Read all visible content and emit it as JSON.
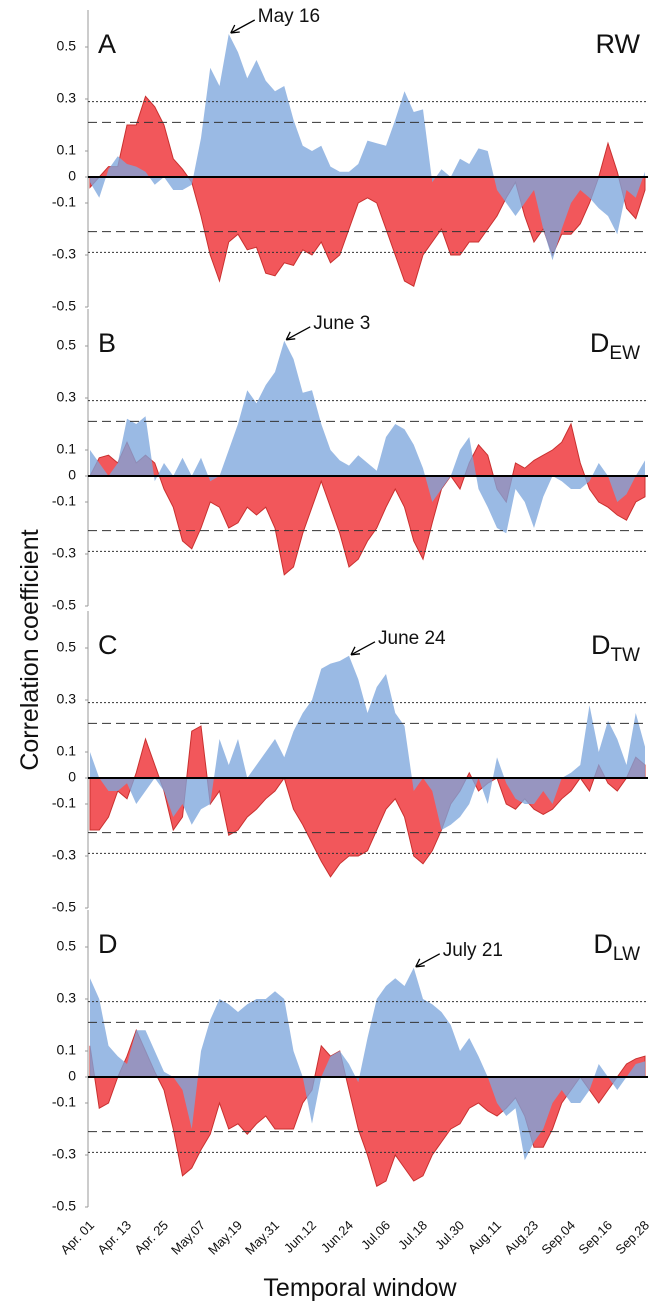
{
  "chart_data": {
    "type": "area",
    "y_label": "Correlation coefficient",
    "x_label": "Temporal window",
    "categories": [
      "Apr. 01",
      null,
      null,
      null,
      "Apr. 13",
      null,
      null,
      null,
      "Apr. 25",
      null,
      null,
      null,
      "May.07",
      null,
      null,
      null,
      "May.19",
      null,
      null,
      null,
      "May.31",
      null,
      null,
      null,
      "Jun.12",
      null,
      null,
      null,
      "Jun.24",
      null,
      null,
      null,
      "Jul.06",
      null,
      null,
      null,
      "Jul.18",
      null,
      null,
      null,
      "Jul.30",
      null,
      null,
      null,
      "Aug.11",
      null,
      null,
      null,
      "Aug.23",
      null,
      null,
      null,
      "Sep.04",
      null,
      null,
      null,
      "Sep.16",
      null,
      null,
      null,
      "Sep.28"
    ],
    "ylim": [
      -0.5,
      0.65
    ],
    "yticks": [
      -0.5,
      -0.3,
      -0.1,
      0,
      0.1,
      0.3,
      0.5
    ],
    "hlines": [
      {
        "value": 0.29,
        "style": "dotted"
      },
      {
        "value": 0.21,
        "style": "dashed"
      },
      {
        "value": -0.21,
        "style": "dashed"
      },
      {
        "value": -0.29,
        "style": "dotted"
      }
    ],
    "panels": [
      {
        "letter": "A",
        "label": {
          "text": "RW"
        },
        "annotation": "May 16",
        "series": [
          {
            "color": "#f2575b",
            "values": [
              -0.04,
              0.0,
              0.04,
              0.04,
              0.2,
              0.2,
              0.31,
              0.27,
              0.2,
              0.07,
              0.03,
              -0.02,
              -0.15,
              -0.3,
              -0.4,
              -0.25,
              -0.22,
              -0.28,
              -0.27,
              -0.37,
              -0.38,
              -0.33,
              -0.34,
              -0.28,
              -0.3,
              -0.25,
              -0.33,
              -0.3,
              -0.2,
              -0.1,
              -0.08,
              -0.1,
              -0.2,
              -0.3,
              -0.4,
              -0.42,
              -0.3,
              -0.25,
              -0.2,
              -0.3,
              -0.3,
              -0.25,
              -0.25,
              -0.2,
              -0.15,
              -0.08,
              -0.02,
              -0.15,
              -0.25,
              -0.2,
              -0.3,
              -0.22,
              -0.22,
              -0.18,
              -0.1,
              0.0,
              0.13,
              0.02,
              -0.12,
              -0.16,
              -0.05
            ]
          },
          {
            "color": "#7ea6dc",
            "values": [
              -0.02,
              -0.08,
              0.03,
              0.08,
              0.05,
              0.04,
              0.02,
              -0.03,
              0.0,
              -0.05,
              -0.05,
              -0.03,
              0.15,
              0.42,
              0.35,
              0.55,
              0.48,
              0.38,
              0.45,
              0.37,
              0.33,
              0.35,
              0.22,
              0.12,
              0.1,
              0.12,
              0.04,
              0.02,
              0.02,
              0.05,
              0.14,
              0.13,
              0.12,
              0.22,
              0.33,
              0.25,
              0.26,
              -0.02,
              0.03,
              0.0,
              0.07,
              0.05,
              0.11,
              0.1,
              -0.05,
              -0.1,
              -0.15,
              -0.1,
              -0.05,
              -0.2,
              -0.32,
              -0.2,
              -0.1,
              -0.05,
              -0.08,
              -0.12,
              -0.15,
              -0.22,
              -0.05,
              -0.08,
              0.02
            ]
          }
        ]
      },
      {
        "letter": "B",
        "label": {
          "text": "D",
          "sub": "EW"
        },
        "annotation": "June 3",
        "series": [
          {
            "color": "#f2575b",
            "values": [
              0.0,
              0.07,
              0.08,
              0.05,
              0.13,
              0.05,
              0.08,
              0.05,
              -0.05,
              -0.12,
              -0.25,
              -0.28,
              -0.2,
              -0.1,
              -0.12,
              -0.2,
              -0.18,
              -0.12,
              -0.15,
              -0.12,
              -0.2,
              -0.38,
              -0.35,
              -0.22,
              -0.12,
              -0.02,
              -0.12,
              -0.22,
              -0.35,
              -0.32,
              -0.25,
              -0.2,
              -0.12,
              -0.05,
              -0.12,
              -0.25,
              -0.32,
              -0.18,
              -0.05,
              0.0,
              -0.05,
              0.05,
              0.12,
              0.08,
              -0.05,
              -0.1,
              0.05,
              0.03,
              0.06,
              0.08,
              0.1,
              0.13,
              0.2,
              0.05,
              -0.05,
              -0.1,
              -0.12,
              -0.15,
              -0.17,
              -0.1,
              -0.08
            ]
          },
          {
            "color": "#7ea6dc",
            "values": [
              0.1,
              0.05,
              0.0,
              0.05,
              0.22,
              0.2,
              0.23,
              -0.02,
              0.05,
              0.0,
              0.07,
              0.0,
              0.07,
              -0.02,
              0.0,
              0.1,
              0.2,
              0.33,
              0.28,
              0.35,
              0.4,
              0.52,
              0.45,
              0.32,
              0.33,
              0.2,
              0.1,
              0.06,
              0.04,
              0.08,
              0.05,
              0.02,
              0.15,
              0.2,
              0.18,
              0.12,
              0.03,
              -0.1,
              -0.05,
              0.0,
              0.1,
              0.15,
              -0.05,
              -0.12,
              -0.2,
              -0.22,
              -0.05,
              -0.1,
              -0.2,
              -0.08,
              0.0,
              -0.02,
              -0.05,
              -0.05,
              -0.02,
              0.05,
              0.0,
              -0.1,
              -0.07,
              0.0,
              0.06
            ]
          }
        ]
      },
      {
        "letter": "C",
        "label": {
          "text": "D",
          "sub": "TW"
        },
        "annotation": "June 24",
        "series": [
          {
            "color": "#f2575b",
            "values": [
              -0.2,
              -0.2,
              -0.15,
              -0.05,
              -0.08,
              0.02,
              0.15,
              0.05,
              -0.05,
              -0.2,
              -0.15,
              0.18,
              0.2,
              -0.1,
              -0.05,
              -0.22,
              -0.2,
              -0.15,
              -0.12,
              -0.08,
              -0.05,
              0.0,
              -0.12,
              -0.18,
              -0.25,
              -0.32,
              -0.38,
              -0.33,
              -0.3,
              -0.3,
              -0.28,
              -0.2,
              -0.12,
              -0.08,
              -0.15,
              -0.3,
              -0.33,
              -0.28,
              -0.2,
              -0.1,
              -0.05,
              0.02,
              -0.05,
              -0.02,
              0.0,
              -0.1,
              -0.12,
              -0.08,
              -0.12,
              -0.14,
              -0.12,
              -0.08,
              -0.05,
              0.0,
              -0.05,
              0.05,
              -0.02,
              -0.05,
              0.0,
              0.08,
              0.05
            ]
          },
          {
            "color": "#7ea6dc",
            "values": [
              0.1,
              0.0,
              -0.05,
              -0.05,
              -0.02,
              -0.1,
              -0.05,
              0.0,
              -0.05,
              -0.15,
              -0.1,
              -0.18,
              -0.12,
              -0.1,
              0.15,
              0.05,
              0.15,
              0.0,
              0.05,
              0.1,
              0.15,
              0.08,
              0.18,
              0.25,
              0.3,
              0.42,
              0.44,
              0.45,
              0.47,
              0.38,
              0.25,
              0.35,
              0.4,
              0.25,
              0.2,
              -0.05,
              0.0,
              -0.05,
              -0.2,
              -0.18,
              -0.15,
              -0.1,
              0.0,
              -0.1,
              0.08,
              -0.02,
              -0.08,
              -0.1,
              -0.1,
              -0.05,
              -0.1,
              0.0,
              0.02,
              0.05,
              0.28,
              0.1,
              0.22,
              0.15,
              0.05,
              0.25,
              0.12
            ]
          }
        ]
      },
      {
        "letter": "D",
        "label": {
          "text": "D",
          "sub": "LW"
        },
        "annotation": "July 21",
        "series": [
          {
            "color": "#f2575b",
            "values": [
              0.12,
              -0.12,
              -0.1,
              0.0,
              0.08,
              0.18,
              0.1,
              0.02,
              -0.05,
              -0.2,
              -0.38,
              -0.35,
              -0.28,
              -0.22,
              -0.1,
              -0.2,
              -0.18,
              -0.22,
              -0.18,
              -0.15,
              -0.2,
              -0.2,
              -0.2,
              -0.1,
              -0.05,
              0.12,
              0.08,
              0.1,
              -0.05,
              -0.2,
              -0.3,
              -0.42,
              -0.4,
              -0.3,
              -0.35,
              -0.4,
              -0.38,
              -0.3,
              -0.25,
              -0.2,
              -0.18,
              -0.12,
              -0.1,
              -0.13,
              -0.15,
              -0.12,
              -0.08,
              -0.15,
              -0.27,
              -0.27,
              -0.2,
              -0.1,
              -0.05,
              0.0,
              -0.05,
              -0.1,
              -0.05,
              0.0,
              0.05,
              0.07,
              0.08
            ]
          },
          {
            "color": "#7ea6dc",
            "values": [
              0.38,
              0.3,
              0.12,
              0.08,
              0.05,
              0.18,
              0.18,
              0.1,
              0.02,
              0.0,
              -0.05,
              -0.2,
              0.1,
              0.22,
              0.3,
              0.28,
              0.25,
              0.28,
              0.3,
              0.3,
              0.33,
              0.3,
              0.1,
              0.0,
              -0.18,
              0.0,
              0.08,
              0.1,
              0.05,
              -0.02,
              0.15,
              0.3,
              0.35,
              0.38,
              0.35,
              0.42,
              0.3,
              0.28,
              0.25,
              0.2,
              0.1,
              0.15,
              0.08,
              0.0,
              -0.1,
              -0.15,
              -0.12,
              -0.32,
              -0.25,
              -0.2,
              -0.1,
              -0.05,
              -0.1,
              -0.1,
              -0.05,
              0.05,
              0.0,
              -0.05,
              0.0,
              0.05,
              0.06
            ]
          }
        ]
      }
    ]
  }
}
